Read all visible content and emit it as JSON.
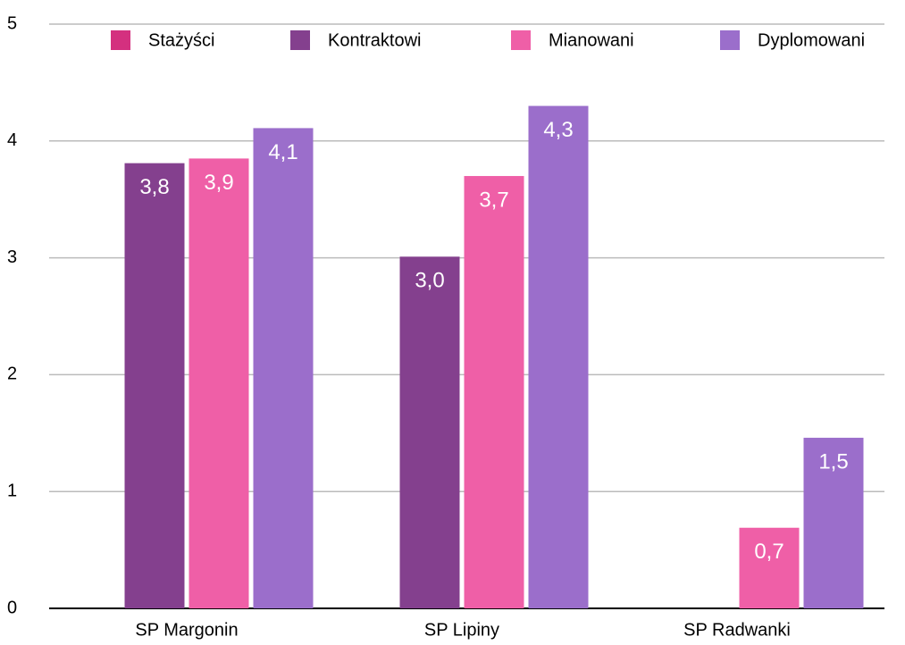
{
  "chart_data": {
    "type": "bar",
    "categories": [
      "SP Margonin",
      "SP Lipiny",
      "SP Radwanki"
    ],
    "series": [
      {
        "name": "Stażyści",
        "color": "#d4307f",
        "values": [
          null,
          null,
          null
        ]
      },
      {
        "name": "Kontraktowi",
        "color": "#84408e",
        "values": [
          3.81,
          3.01,
          null
        ],
        "value_labels": [
          "3,8",
          "3,0",
          null
        ]
      },
      {
        "name": "Mianowani",
        "color": "#ef5fa7",
        "values": [
          3.85,
          3.7,
          0.69
        ],
        "value_labels": [
          "3,9",
          "3,7",
          "0,7"
        ]
      },
      {
        "name": "Dyplomowani",
        "color": "#9b6ecb",
        "values": [
          4.11,
          4.3,
          1.46
        ],
        "value_labels": [
          "4,1",
          "4,3",
          "1,5"
        ]
      }
    ],
    "ylim": [
      0,
      5
    ],
    "yticks": [
      0,
      1,
      2,
      3,
      4,
      5
    ],
    "grid": true,
    "legend": "top"
  }
}
